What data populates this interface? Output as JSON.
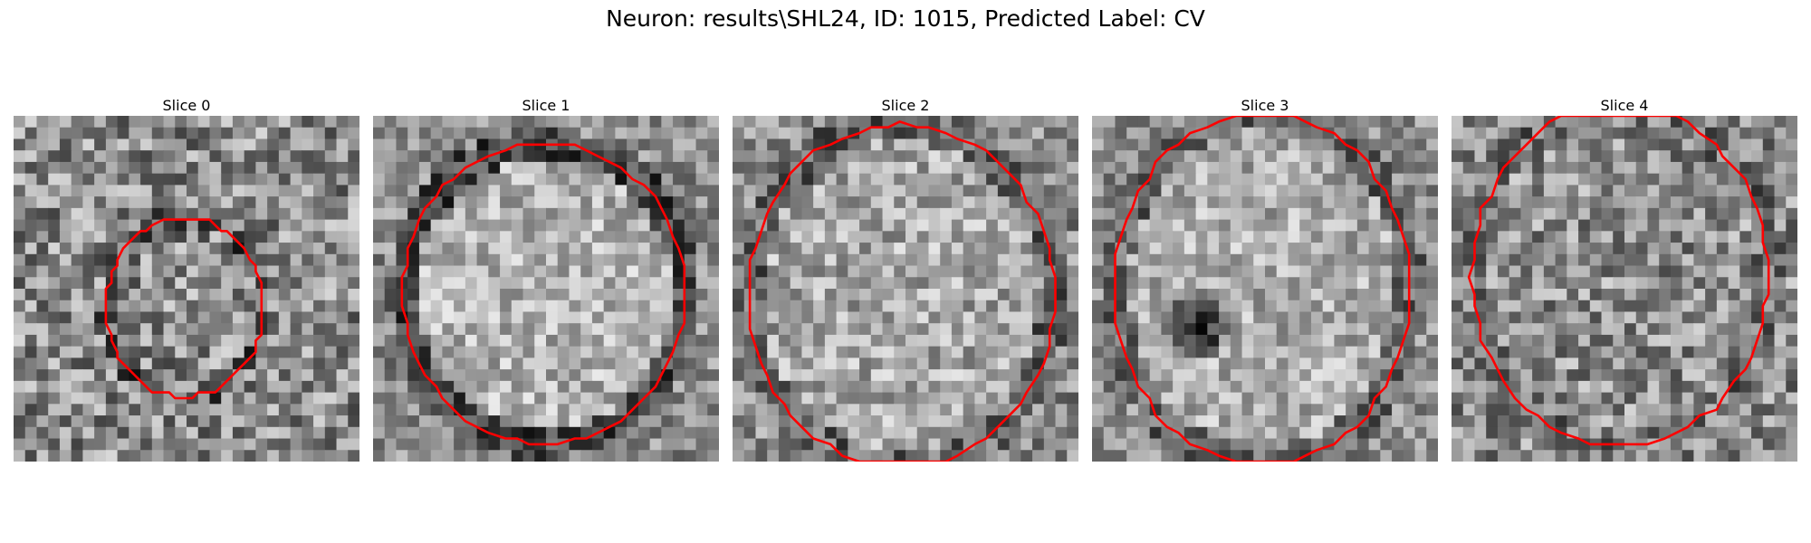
{
  "figure": {
    "title": "Neuron: results\\SHL24, ID: 1015, Predicted Label: CV",
    "colors": {
      "contour": "#ff0000",
      "background": "#ffffff"
    },
    "panels": [
      {
        "title": "Slice 0"
      },
      {
        "title": "Slice 1"
      },
      {
        "title": "Slice 2"
      },
      {
        "title": "Slice 3"
      },
      {
        "title": "Slice 4"
      }
    ]
  }
}
